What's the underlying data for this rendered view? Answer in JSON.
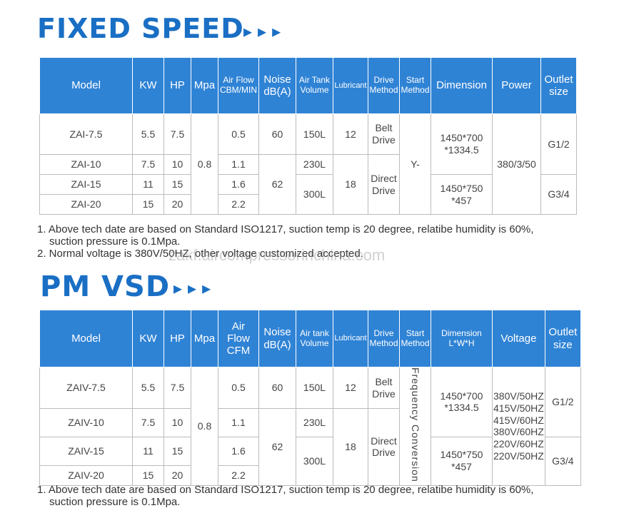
{
  "fixed_title": "FIXED SPEED",
  "pm_title": "PM VSD",
  "arrows": "▸▸▸",
  "watermark": "zakf.aircompressorinchina.com",
  "fixed_table": {
    "headers": {
      "model": "Model",
      "kw": "KW",
      "hp": "HP",
      "mpa": "Mpa",
      "airflow": "Air Flow CBM/MIN",
      "noise": "Noise dB(A)",
      "tank": "Air Tank Volume",
      "lubricant": "Lubricant",
      "drive": "Drive Method",
      "start": "Start Method",
      "dimension": "Dimension",
      "power": "Power",
      "outlet": "Outlet size"
    },
    "rows": [
      {
        "model": "ZAI-7.5",
        "kw": "5.5",
        "hp": "7.5",
        "flow": "0.5"
      },
      {
        "model": "ZAI-10",
        "kw": "7.5",
        "hp": "10",
        "flow": "1.1"
      },
      {
        "model": "ZAI-15",
        "kw": "11",
        "hp": "15",
        "flow": "1.6"
      },
      {
        "model": "ZAI-20",
        "kw": "15",
        "hp": "20",
        "flow": "2.2"
      }
    ],
    "mpa": "0.8",
    "noise": [
      "60",
      "62"
    ],
    "tank": [
      "150L",
      "230L",
      "300L"
    ],
    "lubricant": [
      "12",
      "18"
    ],
    "drive": [
      "Belt Drive",
      "Direct Drive"
    ],
    "start": "Y-",
    "dimension": [
      "1450*700 *1334.5",
      "1450*750 *457"
    ],
    "power": "380/3/50",
    "outlet": [
      "G1/2",
      "G3/4"
    ]
  },
  "pm_table": {
    "headers": {
      "model": "Model",
      "kw": "KW",
      "hp": "HP",
      "mpa": "Mpa",
      "airflow": "Air Flow CFM",
      "noise": "Noise dB(A)",
      "tank": "Air tank Volume",
      "lubricant": "Lubricant",
      "drive": "Drive Method",
      "start": "Start Method",
      "dimension": "Dimension L*W*H",
      "voltage": "Voltage",
      "outlet": "Outlet size"
    },
    "rows": [
      {
        "model": "ZAIV-7.5",
        "kw": "5.5",
        "hp": "7.5",
        "flow": "0.5"
      },
      {
        "model": "ZAIV-10",
        "kw": "7.5",
        "hp": "10",
        "flow": "1.1"
      },
      {
        "model": "ZAIV-15",
        "kw": "11",
        "hp": "15",
        "flow": "1.6"
      },
      {
        "model": "ZAIV-20",
        "kw": "15",
        "hp": "20",
        "flow": "2.2"
      }
    ],
    "mpa": "0.8",
    "noise": [
      "60",
      "62"
    ],
    "tank": [
      "150L",
      "230L",
      "300L"
    ],
    "lubricant": [
      "12",
      "18"
    ],
    "drive": [
      "Belt Drive",
      "Direct Drive"
    ],
    "start": "Frequency Conversion",
    "dimension": [
      "1450*700 *1334.5",
      "1450*750 *457"
    ],
    "voltage": [
      "380V/50HZ",
      "415V/50HZ",
      "415V/60HZ",
      "380V/60HZ",
      "220V/60HZ",
      "220V/50HZ"
    ],
    "outlet": [
      "G1/2",
      "G3/4"
    ]
  },
  "notes": {
    "note1_line1": "1. Above tech date are based on Standard ISO1217, suction temp is 20 degree, relatibe humidity is 60%,",
    "note1_line2": "suction pressure is 0.1Mpa.",
    "note2": "2. Normal voltage is 380V/50HZ, other voltage customized accepted.",
    "note3_line1": "1. Above tech date are based on Standard ISO1217, suction temp is 20 degree, relatibe humidity is 60%,",
    "note3_line2": "suction pressure is 0.1Mpa."
  }
}
